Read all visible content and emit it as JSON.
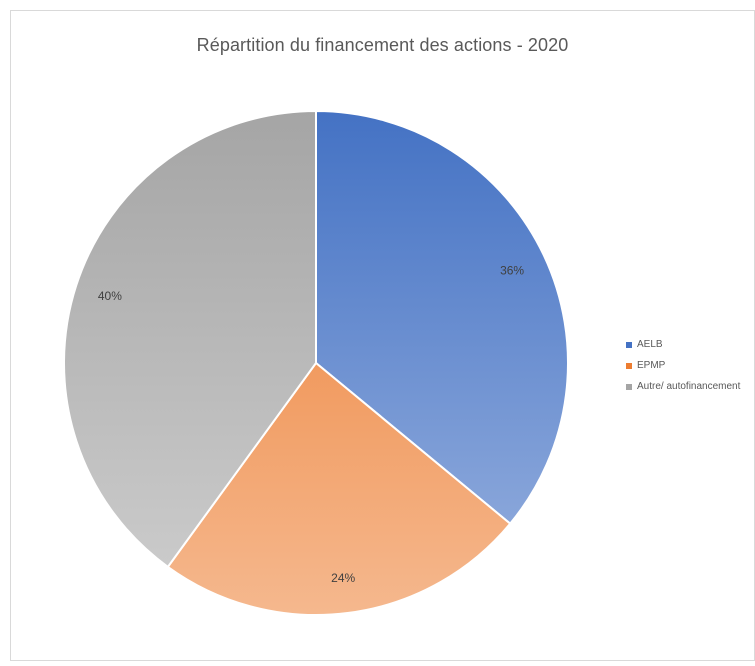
{
  "chart_data": {
    "type": "pie",
    "title": "Répartition du financement des actions - 2020",
    "categories": [
      "AELB",
      "EPMP",
      "Autre/ autofinancement"
    ],
    "values": [
      36,
      24,
      40
    ],
    "value_labels": [
      "36%",
      "24%",
      "40%"
    ],
    "colors": [
      "#4472C4",
      "#ED7D31",
      "#A5A5A5"
    ],
    "legend_position": "right"
  }
}
